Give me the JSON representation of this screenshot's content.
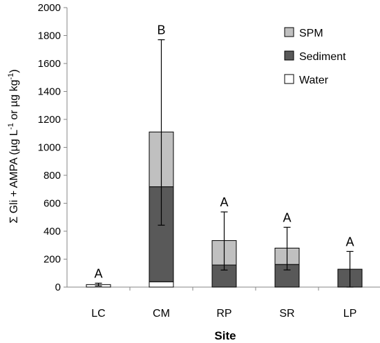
{
  "chart_data": {
    "type": "bar",
    "stacked": true,
    "categories": [
      "LC",
      "CM",
      "RP",
      "SR",
      "LP"
    ],
    "series": [
      {
        "name": "Water",
        "color": "#ffffff",
        "values": [
          18,
          38,
          0,
          0,
          0
        ]
      },
      {
        "name": "Sediment",
        "color": "#595959",
        "values": [
          0,
          680,
          158,
          162,
          128
        ]
      },
      {
        "name": "SPM",
        "color": "#c0c0c0",
        "values": [
          0,
          392,
          175,
          117,
          0
        ]
      }
    ],
    "totals": [
      18,
      1110,
      333,
      279,
      128
    ],
    "error_bars": [
      {
        "low": 8,
        "high": 28
      },
      {
        "low": 443,
        "high": 1770
      },
      {
        "low": 122,
        "high": 538
      },
      {
        "low": 123,
        "high": 428
      },
      {
        "low": 0,
        "high": 255
      }
    ],
    "significance_labels": [
      "A",
      "B",
      "A",
      "A",
      "A"
    ],
    "ylim": [
      0,
      2000
    ],
    "yticks": [
      0,
      200,
      400,
      600,
      800,
      1000,
      1200,
      1400,
      1600,
      1800,
      2000
    ],
    "xlabel": "Site",
    "ylabel": {
      "prefix": "Σ Gli + AMPA (µg L",
      "sup1": "-1",
      "middle": " or µg kg",
      "sup2": "-1",
      "suffix": ")"
    },
    "legend": {
      "position": "top-right",
      "order": [
        "SPM",
        "Sediment",
        "Water"
      ]
    },
    "grid": false
  }
}
